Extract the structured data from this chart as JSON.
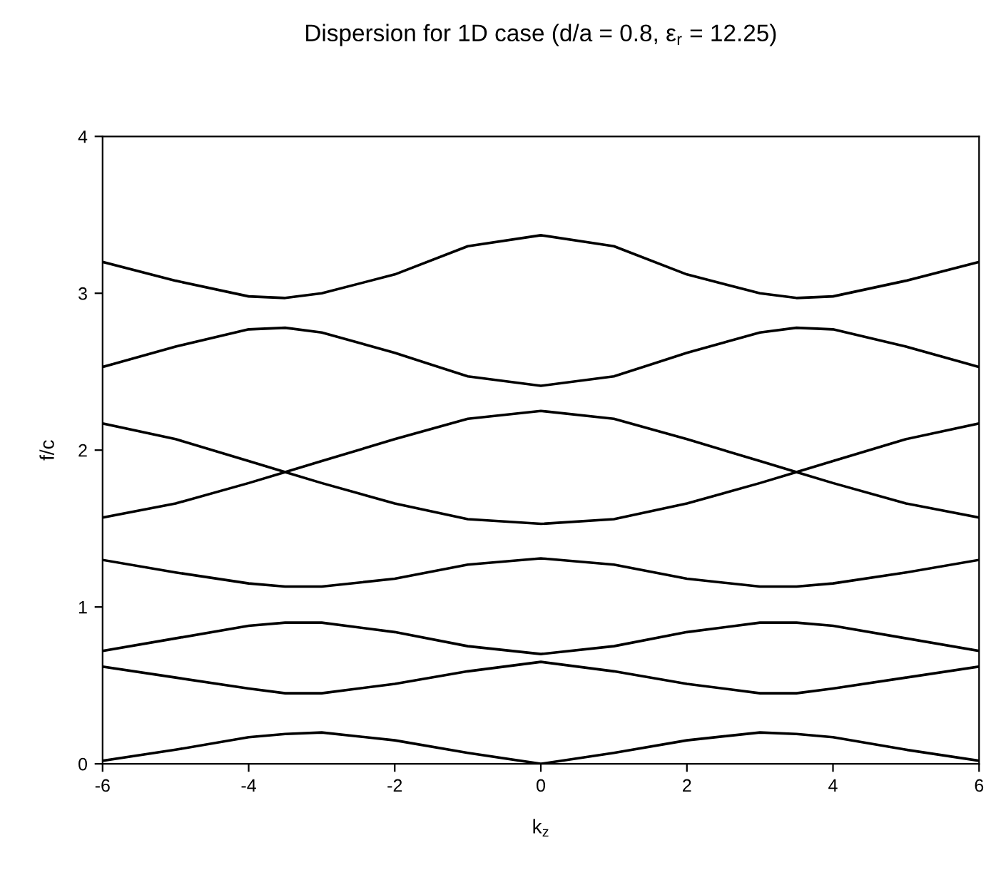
{
  "chart_data": {
    "type": "line",
    "title": "Dispersion for 1D case (d/a = 0.8, ε$_{r}$ = 12.25)",
    "xlabel": "k$_{z}$",
    "ylabel": "f/c",
    "x": [
      -6,
      -5,
      -4,
      -3.5,
      -3,
      -2,
      -1,
      0,
      1,
      2,
      3,
      3.5,
      4,
      5,
      6
    ],
    "series": [
      {
        "color": "#000000",
        "values": [
          0.02,
          0.09,
          0.17,
          0.19,
          0.2,
          0.15,
          0.07,
          0,
          0.07,
          0.15,
          0.2,
          0.19,
          0.17,
          0.09,
          0.02
        ]
      },
      {
        "color": "#000000",
        "values": [
          0.62,
          0.55,
          0.48,
          0.45,
          0.45,
          0.51,
          0.59,
          0.65,
          0.59,
          0.51,
          0.45,
          0.45,
          0.48,
          0.55,
          0.62
        ]
      },
      {
        "color": "#000000",
        "values": [
          0.72,
          0.8,
          0.88,
          0.9,
          0.9,
          0.84,
          0.75,
          0.7,
          0.75,
          0.84,
          0.9,
          0.9,
          0.88,
          0.8,
          0.72
        ]
      },
      {
        "color": "#000000",
        "values": [
          1.3,
          1.22,
          1.15,
          1.13,
          1.13,
          1.18,
          1.27,
          1.31,
          1.27,
          1.18,
          1.13,
          1.13,
          1.15,
          1.22,
          1.3
        ]
      },
      {
        "color": "#000000",
        "values": [
          1.57,
          1.66,
          1.79,
          1.86,
          1.93,
          2.07,
          2.2,
          2.25,
          2.2,
          2.07,
          1.93,
          1.86,
          1.79,
          1.66,
          1.57
        ]
      },
      {
        "color": "#000000",
        "values": [
          2.17,
          2.07,
          1.93,
          1.86,
          1.79,
          1.66,
          1.56,
          1.53,
          1.56,
          1.66,
          1.79,
          1.86,
          1.93,
          2.07,
          2.17
        ]
      },
      {
        "color": "#000000",
        "values": [
          2.53,
          2.66,
          2.77,
          2.78,
          2.75,
          2.62,
          2.47,
          2.41,
          2.47,
          2.62,
          2.75,
          2.78,
          2.77,
          2.66,
          2.53
        ]
      },
      {
        "color": "#000000",
        "values": [
          3.2,
          3.08,
          2.98,
          2.97,
          3.0,
          3.12,
          3.3,
          3.37,
          3.3,
          3.12,
          3.0,
          2.97,
          2.98,
          3.08,
          3.2
        ]
      }
    ],
    "xlim": [
      -6,
      6
    ],
    "ylim": [
      0,
      4
    ],
    "xticks": [
      -6,
      -4,
      -2,
      0,
      2,
      4,
      6
    ],
    "yticks": [
      0,
      1,
      2,
      3,
      4
    ],
    "grid": false,
    "legend": false,
    "marker": "none",
    "line_style": "solid"
  }
}
